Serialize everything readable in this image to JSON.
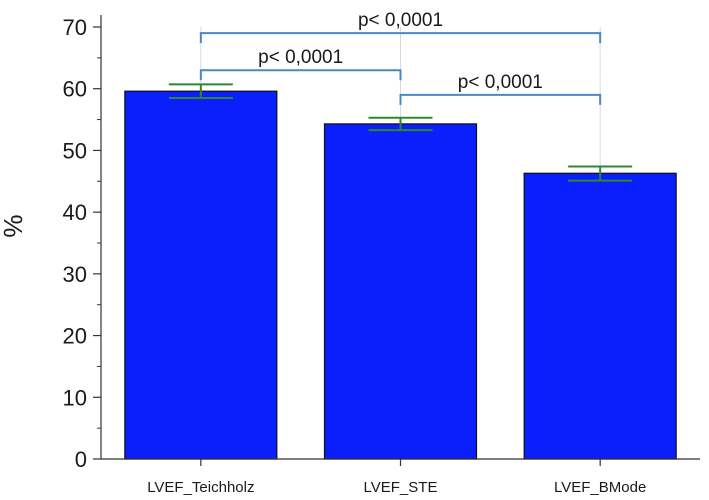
{
  "chart_data": {
    "type": "bar",
    "title": "",
    "xlabel": "",
    "ylabel": "%",
    "ylim": [
      0,
      70
    ],
    "yticks": [
      0,
      10,
      20,
      30,
      40,
      50,
      60,
      70
    ],
    "grid": "vertical at categories",
    "categories": [
      "LVEF_Teichholz",
      "LVEF_STE",
      "LVEF_BMode"
    ],
    "values": [
      59.6,
      54.3,
      46.3
    ],
    "error_low": [
      58.5,
      53.3,
      45.1
    ],
    "error_high": [
      60.7,
      55.3,
      47.4
    ],
    "significance": [
      {
        "from": 0,
        "to": 2,
        "label": "p< 0,0001",
        "level": 69
      },
      {
        "from": 0,
        "to": 1,
        "label": "p< 0,0001",
        "level": 63
      },
      {
        "from": 1,
        "to": 2,
        "label": "p< 0,0001",
        "level": 59
      }
    ]
  },
  "colors": {
    "bar": "#0a1ffb",
    "bar_edge": "#111111",
    "error_bar": "#2b8a2b",
    "bracket": "#4a86c8",
    "grid": "#d9d9d9",
    "axis": "#333333"
  }
}
